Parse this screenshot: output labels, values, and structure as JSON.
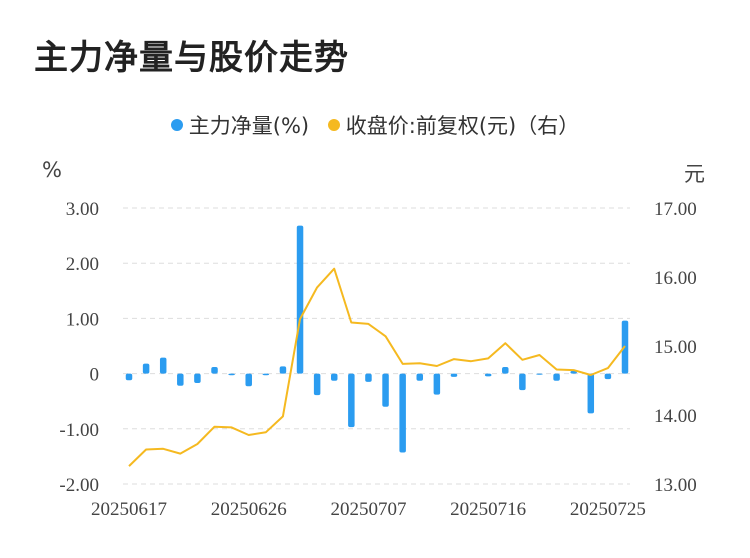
{
  "title": "主力净量与股价走势",
  "legend": {
    "items": [
      {
        "label": "主力净量(%)",
        "color": "#2b9cf0"
      },
      {
        "label": "收盘价:前复权(元)（右）",
        "color": "#f5b920"
      }
    ]
  },
  "axes": {
    "left_unit": "%",
    "right_unit": "元"
  },
  "chart_data": {
    "type": "bar+line",
    "title": "主力净量与股价走势",
    "x_tick_labels": [
      "20250617",
      "20250626",
      "20250707",
      "20250716",
      "20250725"
    ],
    "x_tick_indices": [
      0,
      7,
      14,
      21,
      28
    ],
    "left_axis": {
      "unit": "%",
      "ylim": [
        -2.0,
        3.0
      ],
      "ticks": [
        "3.00",
        "2.00",
        "1.00",
        "0",
        "-1.00",
        "-2.00"
      ],
      "tick_values": [
        3,
        2,
        1,
        0,
        -1,
        -2
      ]
    },
    "right_axis": {
      "unit": "元",
      "ylim": [
        13.0,
        17.0
      ],
      "ticks": [
        "17.00",
        "16.00",
        "15.00",
        "14.00",
        "13.00"
      ],
      "tick_values": [
        17,
        16,
        15,
        14,
        13
      ]
    },
    "grid": true,
    "legend_position": "top-center",
    "categories": [
      "20250617",
      "20250618",
      "20250619",
      "20250620",
      "20250623",
      "20250624",
      "20250625",
      "20250626",
      "20250627",
      "20250630",
      "20250701",
      "20250702",
      "20250703",
      "20250704",
      "20250707",
      "20250708",
      "20250709",
      "20250710",
      "20250711",
      "20250714",
      "20250715",
      "20250716",
      "20250717",
      "20250718",
      "20250721",
      "20250722",
      "20250723",
      "20250724",
      "20250725",
      "20250728"
    ],
    "series": [
      {
        "name": "主力净量(%)",
        "type": "bar",
        "axis": "left",
        "color": "#2b9cf0",
        "values": [
          -0.12,
          0.18,
          0.29,
          -0.22,
          -0.17,
          0.12,
          -0.03,
          -0.23,
          -0.03,
          0.13,
          2.68,
          -0.39,
          -0.13,
          -0.97,
          -0.15,
          -0.6,
          -1.43,
          -0.13,
          -0.38,
          -0.06,
          0.0,
          -0.05,
          0.12,
          -0.3,
          -0.02,
          -0.13,
          0.05,
          -0.72,
          -0.1,
          0.96
        ]
      },
      {
        "name": "收盘价:前复权(元)（右）",
        "type": "line",
        "axis": "right",
        "color": "#f5b920",
        "values": [
          13.26,
          13.5,
          13.51,
          13.44,
          13.58,
          13.83,
          13.82,
          13.71,
          13.75,
          13.98,
          15.39,
          15.85,
          16.12,
          15.34,
          15.32,
          15.14,
          14.74,
          14.75,
          14.71,
          14.81,
          14.78,
          14.82,
          15.04,
          14.8,
          14.87,
          14.66,
          14.65,
          14.58,
          14.68,
          15.0
        ]
      }
    ]
  }
}
